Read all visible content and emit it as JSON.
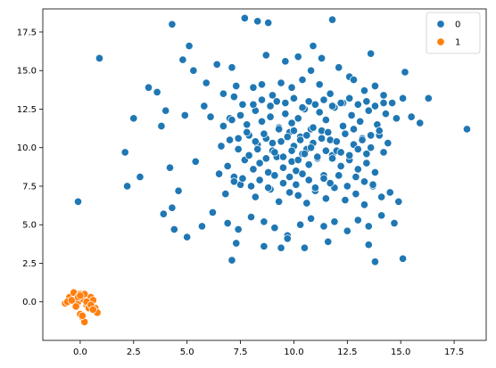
{
  "chart_data": {
    "type": "scatter",
    "title": "",
    "xlabel": "",
    "ylabel": "",
    "xlim": [
      -1.75,
      19.0
    ],
    "ylim": [
      -2.5,
      19.0
    ],
    "xticks": [
      0.0,
      2.5,
      5.0,
      7.5,
      10.0,
      12.5,
      15.0,
      17.5
    ],
    "xtick_labels": [
      "0.0",
      "2.5",
      "5.0",
      "7.5",
      "10.0",
      "12.5",
      "15.0",
      "17.5"
    ],
    "yticks": [
      0.0,
      2.5,
      5.0,
      7.5,
      10.0,
      12.5,
      15.0,
      17.5
    ],
    "ytick_labels": [
      "0.0",
      "2.5",
      "5.0",
      "7.5",
      "10.0",
      "12.5",
      "15.0",
      "17.5"
    ],
    "grid": false,
    "legend": {
      "placement": "top-right",
      "entries": [
        "0",
        "1"
      ]
    },
    "series": [
      {
        "name": "0",
        "color": "#1f77b4",
        "x": [
          0.9,
          4.3,
          7.7,
          8.3,
          8.8,
          11.8,
          3.2,
          3.6,
          4.0,
          4.8,
          5.1,
          5.3,
          5.9,
          6.4,
          7.1,
          7.3,
          8.7,
          9.6,
          10.2,
          10.9,
          11.3,
          12.1,
          12.6,
          13.6,
          15.2,
          16.3,
          18.1,
          2.1,
          2.2,
          2.5,
          2.8,
          3.8,
          4.2,
          4.4,
          4.6,
          4.9,
          5.4,
          5.8,
          6.1,
          6.7,
          7.0,
          7.2,
          7.6,
          8.1,
          8.5,
          9.0,
          9.4,
          9.9,
          10.4,
          10.8,
          11.2,
          11.7,
          12.3,
          12.8,
          13.3,
          13.8,
          14.2,
          14.6,
          15.1,
          15.5,
          15.9,
          -0.1,
          3.9,
          4.3,
          5.0,
          5.7,
          6.2,
          6.9,
          7.4,
          8.0,
          8.6,
          9.1,
          9.7,
          10.3,
          10.8,
          11.4,
          11.9,
          12.5,
          13.0,
          13.5,
          14.1,
          14.7,
          7.1,
          7.3,
          8.6,
          9.4,
          9.7,
          10.5,
          11.6,
          13.5,
          13.8,
          15.1,
          6.8,
          7.5,
          8.2,
          8.9,
          9.3,
          9.8,
          10.2,
          10.6,
          11.0,
          11.5,
          11.9,
          12.4,
          12.9,
          13.3,
          13.7,
          14.1,
          14.5,
          14.9,
          6.5,
          6.9,
          7.2,
          7.7,
          8.1,
          8.4,
          8.8,
          9.2,
          9.5,
          9.9,
          10.1,
          10.4,
          10.7,
          11.1,
          11.4,
          11.8,
          12.2,
          12.6,
          13.0,
          13.4,
          13.8,
          14.2,
          6.6,
          7.0,
          7.4,
          7.9,
          8.3,
          8.7,
          9.0,
          9.4,
          9.8,
          10.0,
          10.3,
          10.6,
          10.9,
          11.3,
          11.7,
          12.0,
          12.4,
          12.8,
          13.2,
          13.6,
          14.0,
          14.4,
          6.7,
          7.1,
          7.5,
          7.8,
          8.2,
          8.5,
          8.9,
          9.3,
          9.6,
          9.9,
          10.2,
          10.5,
          10.8,
          11.2,
          11.5,
          11.9,
          12.3,
          12.7,
          13.1,
          13.5,
          13.9,
          14.3,
          14.8,
          7.2,
          7.6,
          8.0,
          8.4,
          8.8,
          9.1,
          9.5,
          9.8,
          10.1,
          10.4,
          10.7,
          11.0,
          11.4,
          11.7,
          12.1,
          12.5,
          12.9,
          13.3,
          13.7,
          7.4,
          7.8,
          8.2,
          8.6,
          9.0,
          9.3,
          9.7,
          10.0,
          10.3,
          10.6,
          10.9,
          11.3,
          11.6,
          12.0,
          12.4,
          12.8,
          13.2,
          13.6,
          14.0,
          7.9,
          8.3,
          8.7,
          9.1,
          9.5,
          9.9,
          10.2,
          10.5,
          10.8,
          11.1,
          11.5,
          11.8,
          12.2,
          12.6,
          13.0,
          13.4,
          8.1,
          8.5,
          8.9,
          9.2,
          9.6,
          10.0,
          10.4,
          10.7,
          11.0,
          11.4,
          11.8,
          12.2,
          12.6,
          13.0,
          13.4,
          13.8,
          14.2
        ],
        "y": [
          15.8,
          18.0,
          18.4,
          18.2,
          18.1,
          18.3,
          13.9,
          13.6,
          12.4,
          15.7,
          16.6,
          15.0,
          14.2,
          15.4,
          15.2,
          14.0,
          16.0,
          15.6,
          15.9,
          16.6,
          15.8,
          15.2,
          14.6,
          16.1,
          14.9,
          13.2,
          11.2,
          9.7,
          7.5,
          11.9,
          8.1,
          11.4,
          8.7,
          4.7,
          7.2,
          12.1,
          9.1,
          12.7,
          12.0,
          13.5,
          11.9,
          13.3,
          12.8,
          13.9,
          14.1,
          13.4,
          14.2,
          13.9,
          14.4,
          15.0,
          14.1,
          13.5,
          12.9,
          14.4,
          13.7,
          14.0,
          13.4,
          12.9,
          13.2,
          12.0,
          11.6,
          6.5,
          5.7,
          6.1,
          4.2,
          4.9,
          5.8,
          5.1,
          4.7,
          5.5,
          5.2,
          4.8,
          4.3,
          5.0,
          5.4,
          4.9,
          5.2,
          4.6,
          5.3,
          4.9,
          5.6,
          5.1,
          2.7,
          3.8,
          3.6,
          3.5,
          4.1,
          3.5,
          3.9,
          3.7,
          2.6,
          2.8,
          7.0,
          7.6,
          6.8,
          7.3,
          6.5,
          7.1,
          6.9,
          6.4,
          7.2,
          6.7,
          7.4,
          6.6,
          7.0,
          6.3,
          7.5,
          6.8,
          7.1,
          6.5,
          8.3,
          8.8,
          8.1,
          9.2,
          8.6,
          9.0,
          8.4,
          9.4,
          8.7,
          9.1,
          8.5,
          9.6,
          8.9,
          9.3,
          8.2,
          9.5,
          8.8,
          9.2,
          8.6,
          9.0,
          8.4,
          9.7,
          10.1,
          10.5,
          9.9,
          10.8,
          10.2,
          10.6,
          9.8,
          10.4,
          11.0,
          10.1,
          10.7,
          9.9,
          10.3,
          11.1,
          10.5,
          9.8,
          10.9,
          10.2,
          10.6,
          10.0,
          10.8,
          10.3,
          11.4,
          11.8,
          12.1,
          11.5,
          12.4,
          11.7,
          12.0,
          11.3,
          12.2,
          11.6,
          11.9,
          12.5,
          11.2,
          12.3,
          11.8,
          12.6,
          11.4,
          12.1,
          11.7,
          12.4,
          11.5,
          12.2,
          11.9,
          7.8,
          8.0,
          7.5,
          7.9,
          7.4,
          8.2,
          7.7,
          8.1,
          7.6,
          8.3,
          7.9,
          7.4,
          8.0,
          7.7,
          8.2,
          7.5,
          8.1,
          7.8,
          7.6,
          10.6,
          11.0,
          10.4,
          10.9,
          10.3,
          11.2,
          10.7,
          11.1,
          10.5,
          10.8,
          11.3,
          10.6,
          11.0,
          10.4,
          10.9,
          11.2,
          10.5,
          10.8,
          11.1,
          9.5,
          9.9,
          9.3,
          9.7,
          9.4,
          9.8,
          9.2,
          9.6,
          10.0,
          9.4,
          9.8,
          9.3,
          9.7,
          9.5,
          9.9,
          9.6,
          12.8,
          13.1,
          12.7,
          13.0,
          12.9,
          13.2,
          12.6,
          13.0,
          12.8,
          13.1,
          12.7,
          12.9,
          13.2,
          12.8,
          13.0,
          12.7,
          12.9
        ]
      },
      {
        "name": "1",
        "color": "#ff7f0e",
        "x": [
          -0.7,
          -0.5,
          -0.3,
          -0.1,
          0.0,
          0.1,
          0.2,
          0.3,
          0.4,
          0.5,
          0.6,
          0.7,
          0.8,
          -0.6,
          -0.4,
          -0.2,
          0.0,
          0.1,
          0.2,
          0.3,
          0.4,
          0.5,
          0.6,
          -0.1,
          0.0,
          0.1
        ],
        "y": [
          -0.1,
          0.3,
          0.6,
          0.0,
          0.5,
          0.2,
          0.5,
          -0.2,
          0.1,
          0.3,
          0.1,
          -0.4,
          -0.7,
          0.0,
          0.1,
          -0.3,
          -0.8,
          -1.0,
          -1.3,
          0.0,
          -0.4,
          -0.2,
          -0.5,
          0.3,
          0.4,
          -0.9
        ]
      }
    ]
  }
}
